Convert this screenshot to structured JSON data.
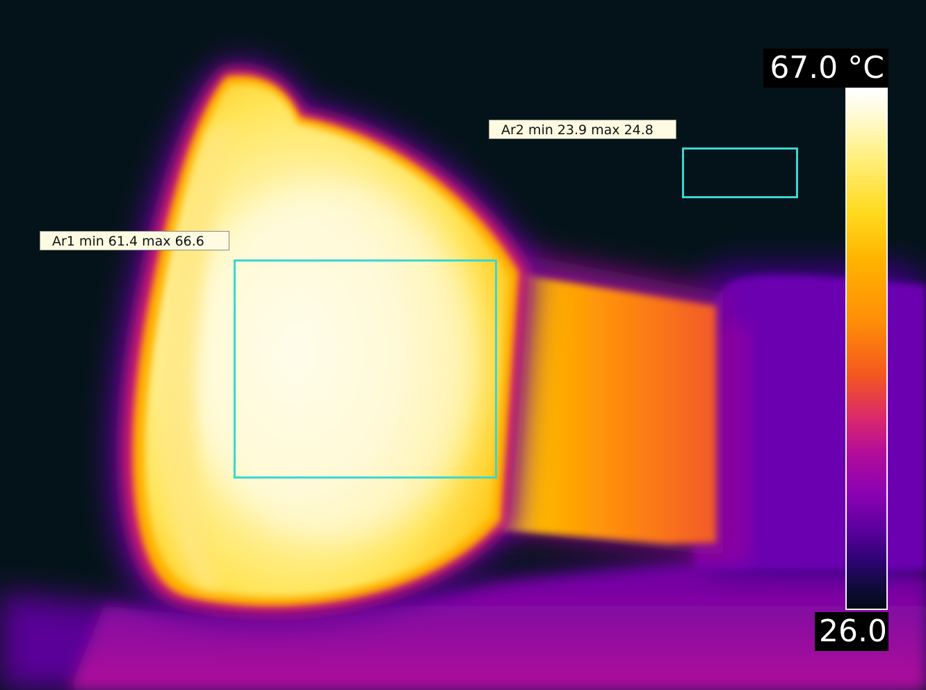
{
  "measurements": {
    "area1": {
      "label": "Ar1 min 61.4 max 66.6"
    },
    "area2": {
      "label": "Ar2 min 23.9 max 24.8"
    }
  },
  "scale": {
    "max_label": "67.0 °C",
    "min_label": "26.0",
    "palette": "iron",
    "roi_color": "#39d7d4",
    "background_color": "#041319"
  }
}
